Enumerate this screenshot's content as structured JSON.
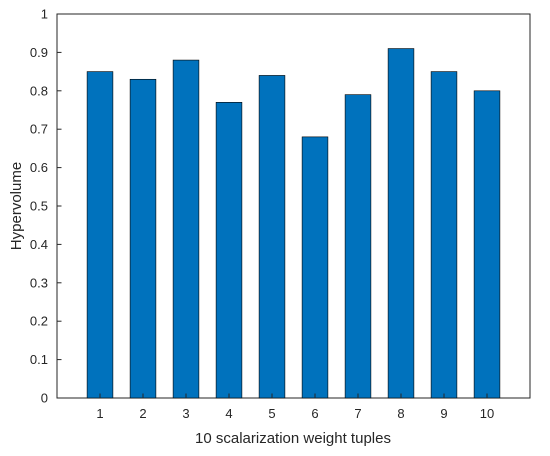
{
  "chart_data": {
    "type": "bar",
    "title": "",
    "xlabel": "10 scalarization weight tuples",
    "ylabel": "Hypervolume",
    "categories": [
      "1",
      "2",
      "3",
      "4",
      "5",
      "6",
      "7",
      "8",
      "9",
      "10"
    ],
    "values": [
      0.85,
      0.83,
      0.88,
      0.77,
      0.84,
      0.68,
      0.79,
      0.91,
      0.85,
      0.8
    ],
    "ylim": [
      0,
      1
    ],
    "yticks": [
      0,
      0.1,
      0.2,
      0.3,
      0.4,
      0.5,
      0.6,
      0.7,
      0.8,
      0.9,
      1
    ],
    "ytick_labels": [
      "0",
      "0.1",
      "0.2",
      "0.3",
      "0.4",
      "0.5",
      "0.6",
      "0.7",
      "0.8",
      "0.9",
      "1"
    ],
    "grid": false,
    "legend": "none",
    "bar_color": "#0072BD",
    "bar_edge_color": "#000000",
    "axis_color": "#262626"
  }
}
